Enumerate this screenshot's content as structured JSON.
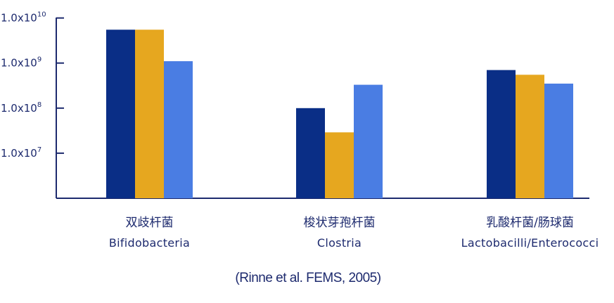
{
  "chart_data": {
    "type": "bar",
    "yscale": "log",
    "ylim": [
      1000000,
      10000000000
    ],
    "yticks": [
      {
        "value": 10000000000,
        "base": "1.0x10",
        "exp": "10"
      },
      {
        "value": 1000000000,
        "base": "1.0x10",
        "exp": "9"
      },
      {
        "value": 100000000,
        "base": "1.0x10",
        "exp": "8"
      },
      {
        "value": 10000000,
        "base": "1.0x10",
        "exp": "7"
      }
    ],
    "categories": [
      {
        "cn": "双歧杆菌",
        "en": "Bifidobacteria"
      },
      {
        "cn": "梭状芽孢杆菌",
        "en": "Clostria"
      },
      {
        "cn": "乳酸杆菌/肠球菌",
        "en": "Lactobacilli/Enterococci"
      }
    ],
    "series": [
      {
        "color": "#0a2e86",
        "values": [
          5500000000,
          100000000,
          700000000
        ]
      },
      {
        "color": "#e6a71f",
        "values": [
          5500000000,
          29000000,
          550000000
        ]
      },
      {
        "color": "#4a7de3",
        "values": [
          1100000000,
          330000000,
          350000000
        ]
      }
    ],
    "source": "(Rinne et al. FEMS, 2005)",
    "axis_color": "#1d2a6e"
  }
}
